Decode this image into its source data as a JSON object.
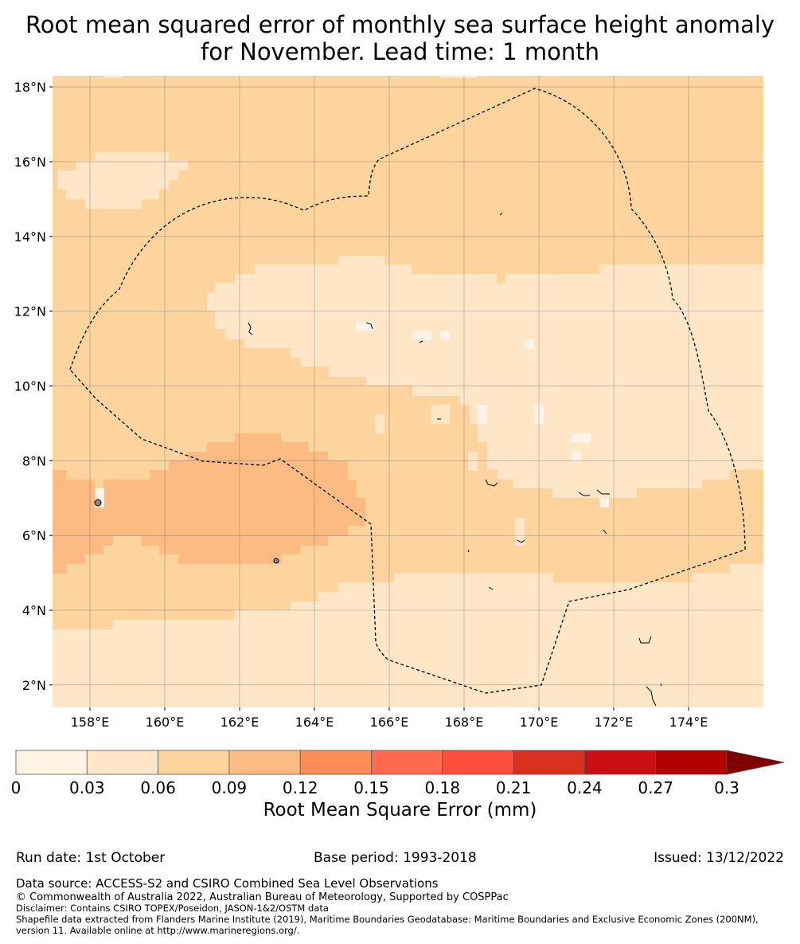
{
  "title": {
    "line1": "Root mean squared error of monthly sea surface height anomaly",
    "line2": "for November. Lead time: 1 month"
  },
  "map": {
    "lat_labels": [
      "2°N",
      "4°N",
      "6°N",
      "8°N",
      "10°N",
      "12°N",
      "14°N",
      "16°N",
      "18°N"
    ],
    "lat_values": [
      2,
      4,
      6,
      8,
      10,
      12,
      14,
      16,
      18
    ],
    "lon_labels": [
      "158°E",
      "160°E",
      "162°E",
      "164°E",
      "166°E",
      "168°E",
      "170°E",
      "172°E",
      "174°E"
    ],
    "lon_values": [
      158,
      160,
      162,
      164,
      166,
      168,
      170,
      172,
      174
    ],
    "lon_range": [
      157,
      176
    ],
    "lat_range": [
      1.4,
      18.3
    ],
    "class_colors": {
      "light": "#fee6c7",
      "mid": "#fdd49e",
      "high": "#fdbb84",
      "lightest": "#fff4e6"
    }
  },
  "colorbar": {
    "tick_labels": [
      "0",
      "0.03",
      "0.06",
      "0.09",
      "0.12",
      "0.15",
      "0.18",
      "0.21",
      "0.24",
      "0.27",
      "0.3"
    ],
    "colors": [
      "#fff3e3",
      "#fee6c7",
      "#fdd49e",
      "#fdbb84",
      "#fc8d59",
      "#fd6a4d",
      "#fc4e3c",
      "#d7301f",
      "#c90e14",
      "#b30000"
    ],
    "extend_color": "#7f0000",
    "label": "Root Mean Square Error (mm)"
  },
  "info": {
    "run_date": "Run date: 1st October",
    "base_period": "Base period: 1993-2018",
    "issued": "Issued: 13/12/2022"
  },
  "footer": {
    "data_source": "Data source: ACCESS-S2 and CSIRO Combined Sea Level Observations",
    "copyright": "© Commonwealth of Australia 2022, Australian Bureau of Meteorology, Supported by COSPPac",
    "disclaimer": "Disclaimer: Contains CSIRO TOPEX/Poseidon, JASON-1&2/OSTM data",
    "shapefile_line1": "Shapefile data extracted from Flanders Marine Institute (2019), Maritime Boundaries Geodatabase: Maritime Boundaries and Exclusive Economic Zones (200NM),",
    "shapefile_line2": "version 11. Available online at http://www.marineregions.org/."
  }
}
